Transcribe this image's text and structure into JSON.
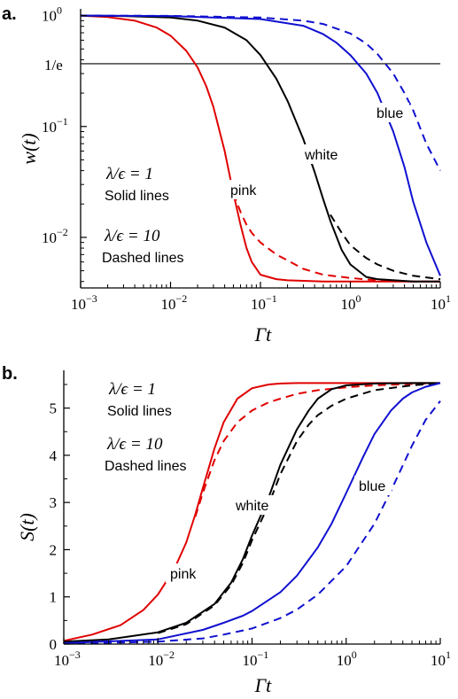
{
  "panels": {
    "a": {
      "label": "a.",
      "ylabel": "w(t)",
      "xlabel": "Γt",
      "e_line_label": "1/e",
      "legend_solid_math": "λ/ϵ = 1",
      "legend_solid_text": "Solid lines",
      "legend_dashed_math": "λ/ϵ = 10",
      "legend_dashed_text": "Dashed lines"
    },
    "b": {
      "label": "b.",
      "ylabel": "S(t)",
      "xlabel": "Γt",
      "legend_solid_math": "λ/ϵ = 1",
      "legend_solid_text": "Solid lines",
      "legend_dashed_math": "λ/ϵ = 10",
      "legend_dashed_text": "Dashed lines"
    }
  },
  "colors": {
    "pink": "#e00000",
    "white": "#000000",
    "blue": "#1010d0"
  },
  "chart_data": [
    {
      "type": "line",
      "panel": "a",
      "title": "",
      "xlabel": "Γt",
      "ylabel": "w(t)",
      "xscale": "log",
      "yscale": "log",
      "xlim": [
        0.001,
        10
      ],
      "ylim": [
        0.0035,
        1.15
      ],
      "x_ticks": [
        0.001,
        0.01,
        0.1,
        1,
        10
      ],
      "y_ticks": [
        0.01,
        0.1,
        1
      ],
      "reference_line": {
        "y": 0.3679,
        "label": "1/e"
      },
      "series": [
        {
          "name": "pink",
          "style": "solid",
          "color": "#e00000",
          "x": [
            0.001,
            0.002,
            0.004,
            0.007,
            0.01,
            0.015,
            0.02,
            0.025,
            0.03,
            0.04,
            0.05,
            0.06,
            0.07,
            0.08,
            0.1,
            0.15,
            0.2,
            0.5,
            1,
            10
          ],
          "y": [
            1.0,
            0.97,
            0.9,
            0.78,
            0.66,
            0.48,
            0.34,
            0.23,
            0.15,
            0.06,
            0.025,
            0.013,
            0.008,
            0.006,
            0.0046,
            0.0042,
            0.0041,
            0.004,
            0.004,
            0.004
          ]
        },
        {
          "name": "pink",
          "style": "dashed",
          "color": "#e00000",
          "x": [
            0.05,
            0.06,
            0.07,
            0.08,
            0.1,
            0.15,
            0.2,
            0.3,
            0.5,
            1,
            2,
            5,
            10
          ],
          "y": [
            0.025,
            0.017,
            0.013,
            0.011,
            0.009,
            0.007,
            0.0062,
            0.0052,
            0.0046,
            0.0043,
            0.0041,
            0.004,
            0.004
          ]
        },
        {
          "name": "white",
          "style": "solid",
          "color": "#000000",
          "x": [
            0.001,
            0.003,
            0.01,
            0.02,
            0.04,
            0.07,
            0.1,
            0.15,
            0.2,
            0.3,
            0.4,
            0.5,
            0.6,
            0.8,
            1,
            1.5,
            2,
            5,
            10
          ],
          "y": [
            1.0,
            0.99,
            0.96,
            0.9,
            0.78,
            0.6,
            0.44,
            0.27,
            0.17,
            0.077,
            0.039,
            0.022,
            0.014,
            0.0077,
            0.0057,
            0.0044,
            0.0042,
            0.004,
            0.004
          ]
        },
        {
          "name": "white",
          "style": "dashed",
          "color": "#000000",
          "x": [
            0.6,
            0.8,
            1,
            1.5,
            2,
            3,
            5,
            10
          ],
          "y": [
            0.016,
            0.011,
            0.0085,
            0.0065,
            0.0057,
            0.005,
            0.0045,
            0.0042
          ]
        },
        {
          "name": "blue",
          "style": "solid",
          "color": "#1010d0",
          "x": [
            0.001,
            0.01,
            0.1,
            0.3,
            0.5,
            0.7,
            1,
            1.5,
            2,
            3,
            4,
            5,
            7,
            10
          ],
          "y": [
            1.0,
            0.99,
            0.93,
            0.81,
            0.68,
            0.57,
            0.44,
            0.3,
            0.2,
            0.09,
            0.043,
            0.021,
            0.009,
            0.0045
          ]
        },
        {
          "name": "blue",
          "style": "dashed",
          "color": "#1010d0",
          "x": [
            0.001,
            0.01,
            0.1,
            0.3,
            0.5,
            1,
            1.5,
            2,
            3,
            4,
            5,
            7,
            10
          ],
          "y": [
            1.0,
            0.995,
            0.96,
            0.9,
            0.84,
            0.69,
            0.56,
            0.45,
            0.3,
            0.2,
            0.14,
            0.07,
            0.04
          ]
        }
      ]
    },
    {
      "type": "line",
      "panel": "b",
      "title": "",
      "xlabel": "Γt",
      "ylabel": "S(t)",
      "xscale": "log",
      "yscale": "linear",
      "xlim": [
        0.001,
        10
      ],
      "ylim": [
        0,
        5.8
      ],
      "x_ticks": [
        0.001,
        0.01,
        0.1,
        1,
        10
      ],
      "y_ticks": [
        0,
        1,
        2,
        3,
        4,
        5
      ],
      "series": [
        {
          "name": "pink",
          "style": "solid",
          "color": "#e00000",
          "x": [
            0.001,
            0.002,
            0.004,
            0.007,
            0.01,
            0.015,
            0.02,
            0.025,
            0.03,
            0.04,
            0.05,
            0.07,
            0.1,
            0.15,
            0.2,
            0.3,
            1,
            10
          ],
          "y": [
            0.07,
            0.2,
            0.4,
            0.72,
            1.05,
            1.6,
            2.15,
            2.75,
            3.3,
            4.15,
            4.7,
            5.2,
            5.42,
            5.5,
            5.52,
            5.53,
            5.53,
            5.53
          ]
        },
        {
          "name": "pink",
          "style": "dashed",
          "color": "#e00000",
          "x": [
            0.025,
            0.03,
            0.04,
            0.05,
            0.07,
            0.1,
            0.15,
            0.2,
            0.3,
            0.5,
            1,
            2,
            5,
            10
          ],
          "y": [
            2.7,
            3.2,
            3.9,
            4.3,
            4.7,
            4.95,
            5.12,
            5.2,
            5.3,
            5.38,
            5.44,
            5.48,
            5.51,
            5.53
          ]
        },
        {
          "name": "white",
          "style": "solid",
          "color": "#000000",
          "x": [
            0.001,
            0.003,
            0.01,
            0.02,
            0.04,
            0.06,
            0.08,
            0.1,
            0.15,
            0.2,
            0.3,
            0.4,
            0.5,
            0.7,
            1,
            2,
            5,
            10
          ],
          "y": [
            0.05,
            0.1,
            0.25,
            0.45,
            0.85,
            1.3,
            1.8,
            2.3,
            3.1,
            3.8,
            4.55,
            4.95,
            5.2,
            5.4,
            5.48,
            5.52,
            5.53,
            5.53
          ]
        },
        {
          "name": "white",
          "style": "dashed",
          "color": "#000000",
          "x": [
            0.01,
            0.02,
            0.04,
            0.06,
            0.08,
            0.1,
            0.15,
            0.2,
            0.3,
            0.4,
            0.5,
            0.7,
            1,
            2,
            5,
            10
          ],
          "y": [
            0.23,
            0.42,
            0.82,
            1.25,
            1.72,
            2.2,
            2.95,
            3.6,
            4.3,
            4.65,
            4.85,
            5.05,
            5.2,
            5.38,
            5.48,
            5.53
          ]
        },
        {
          "name": "blue",
          "style": "solid",
          "color": "#1010d0",
          "x": [
            0.001,
            0.01,
            0.03,
            0.05,
            0.08,
            0.1,
            0.2,
            0.3,
            0.5,
            0.7,
            1,
            1.5,
            2,
            3,
            4,
            5,
            7,
            10
          ],
          "y": [
            0.02,
            0.1,
            0.3,
            0.45,
            0.6,
            0.7,
            1.1,
            1.45,
            2.05,
            2.55,
            3.2,
            3.95,
            4.45,
            4.95,
            5.2,
            5.33,
            5.45,
            5.53
          ]
        },
        {
          "name": "blue",
          "style": "dashed",
          "color": "#1010d0",
          "x": [
            0.001,
            0.01,
            0.03,
            0.05,
            0.1,
            0.2,
            0.3,
            0.5,
            1,
            2,
            3,
            5,
            7,
            10
          ],
          "y": [
            0.01,
            0.05,
            0.12,
            0.2,
            0.33,
            0.55,
            0.73,
            1.05,
            1.65,
            2.55,
            3.25,
            4.2,
            4.75,
            5.15
          ]
        }
      ]
    }
  ]
}
